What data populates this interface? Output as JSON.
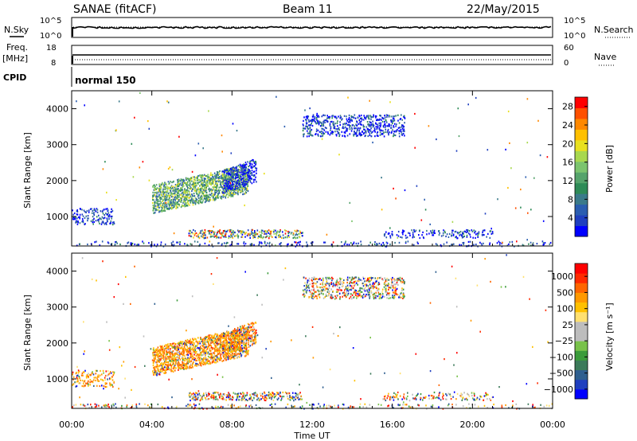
{
  "header": {
    "left": "SANAE (fitACF)",
    "center": "Beam 11",
    "right": "22/May/2015"
  },
  "panels": {
    "nsky": {
      "left_label": "N.Sky",
      "right_label": "N.Search",
      "left_ticks": [
        "10^5",
        "10^0"
      ],
      "right_ticks": [
        "10^5",
        "10^0"
      ]
    },
    "freq": {
      "left_label_1": "Freq.",
      "left_label_2": "[MHz]",
      "right_label": "Nave",
      "left_ticks": [
        "18",
        "8"
      ],
      "right_ticks": [
        "60",
        "0"
      ]
    },
    "cpid": {
      "label": "CPID",
      "text": "normal 150"
    }
  },
  "chart_data": [
    {
      "type": "heatmap",
      "title": "",
      "xlabel": "",
      "ylabel": "Slant Range [km]",
      "xlim": [
        0,
        24
      ],
      "ylim": [
        180,
        4500
      ],
      "x_ticks": [],
      "y_ticks": [
        1000,
        2000,
        3000,
        4000
      ],
      "colorbar": {
        "label": "Power [dB]",
        "ticks": [
          "4",
          "8",
          "12",
          "16",
          "20",
          "24",
          "28"
        ],
        "tick_values": [
          4,
          8,
          12,
          16,
          20,
          24,
          28
        ],
        "range": [
          0,
          30
        ],
        "colors": [
          "#0000ff",
          "#1f3fbf",
          "#2a5db0",
          "#3a7a8a",
          "#2e8b57",
          "#55a36b",
          "#7cc46e",
          "#a8d84f",
          "#e8e020",
          "#ffc000",
          "#ff8800",
          "#ff5000",
          "#ff0000"
        ]
      },
      "clusters": [
        {
          "t0": 4.0,
          "t1": 8.8,
          "r0": 1100,
          "r1": 1900,
          "slope": 120,
          "density": 0.55,
          "dist": "power_mid"
        },
        {
          "t0": 7.5,
          "t1": 9.2,
          "r0": 1650,
          "r1": 2300,
          "slope": 200,
          "density": 0.4,
          "dist": "power_blue"
        },
        {
          "t0": 0.0,
          "t1": 2.1,
          "r0": 800,
          "r1": 1250,
          "slope": 0,
          "density": 0.25,
          "dist": "power_blue"
        },
        {
          "t0": 0.0,
          "t1": 24.0,
          "r0": 190,
          "r1": 330,
          "slope": 0,
          "density": 0.12,
          "dist": "power_blue"
        },
        {
          "t0": 5.8,
          "t1": 11.5,
          "r0": 420,
          "r1": 650,
          "slope": 0,
          "density": 0.35,
          "dist": "power_mixed"
        },
        {
          "t0": 11.5,
          "t1": 16.6,
          "r0": 3250,
          "r1": 3850,
          "slope": 0,
          "density": 0.3,
          "dist": "power_blue"
        },
        {
          "t0": 15.5,
          "t1": 21.0,
          "r0": 420,
          "r1": 650,
          "slope": 0,
          "density": 0.18,
          "dist": "power_blue"
        }
      ],
      "scatter_count": 120,
      "scatter_dist": "power_mixed"
    },
    {
      "type": "heatmap",
      "title": "",
      "xlabel": "Time UT",
      "ylabel": "Slant Range [km]",
      "xlim": [
        0,
        24
      ],
      "ylim": [
        180,
        4500
      ],
      "x_ticks": [
        "00:00",
        "04:00",
        "08:00",
        "12:00",
        "16:00",
        "20:00",
        "00:00"
      ],
      "x_tick_values": [
        0,
        4,
        8,
        12,
        16,
        20,
        24
      ],
      "y_ticks": [
        1000,
        2000,
        3000,
        4000
      ],
      "colorbar": {
        "label": "Velocity [m s⁻¹]",
        "ticks": [
          "1000",
          "500",
          "100",
          "25",
          "−25",
          "−100",
          "−500",
          "−1000"
        ],
        "colors": [
          "#0000ff",
          "#1f3fbf",
          "#2f5f8f",
          "#3c7a5a",
          "#3a9b3a",
          "#79c24a",
          "#bdbdbd",
          "#bdbdbd",
          "#ffe070",
          "#ffc000",
          "#ff9900",
          "#ff6600",
          "#ff2a00",
          "#ff0000"
        ]
      },
      "clusters": [
        {
          "t0": 4.0,
          "t1": 8.8,
          "r0": 1100,
          "r1": 1900,
          "slope": 120,
          "density": 0.55,
          "dist": "vel_orange"
        },
        {
          "t0": 7.5,
          "t1": 9.2,
          "r0": 1650,
          "r1": 2300,
          "slope": 200,
          "density": 0.4,
          "dist": "vel_orange"
        },
        {
          "t0": 0.0,
          "t1": 2.1,
          "r0": 800,
          "r1": 1250,
          "slope": 0,
          "density": 0.25,
          "dist": "vel_orange"
        },
        {
          "t0": 0.0,
          "t1": 24.0,
          "r0": 190,
          "r1": 330,
          "slope": 0,
          "density": 0.12,
          "dist": "vel_mixed"
        },
        {
          "t0": 5.8,
          "t1": 11.5,
          "r0": 420,
          "r1": 650,
          "slope": 0,
          "density": 0.35,
          "dist": "vel_mixed"
        },
        {
          "t0": 11.5,
          "t1": 16.6,
          "r0": 3250,
          "r1": 3850,
          "slope": 0,
          "density": 0.3,
          "dist": "vel_mixed"
        },
        {
          "t0": 15.5,
          "t1": 21.0,
          "r0": 420,
          "r1": 650,
          "slope": 0,
          "density": 0.18,
          "dist": "vel_mixed"
        }
      ],
      "scatter_count": 120,
      "scatter_dist": "vel_mixed"
    }
  ]
}
